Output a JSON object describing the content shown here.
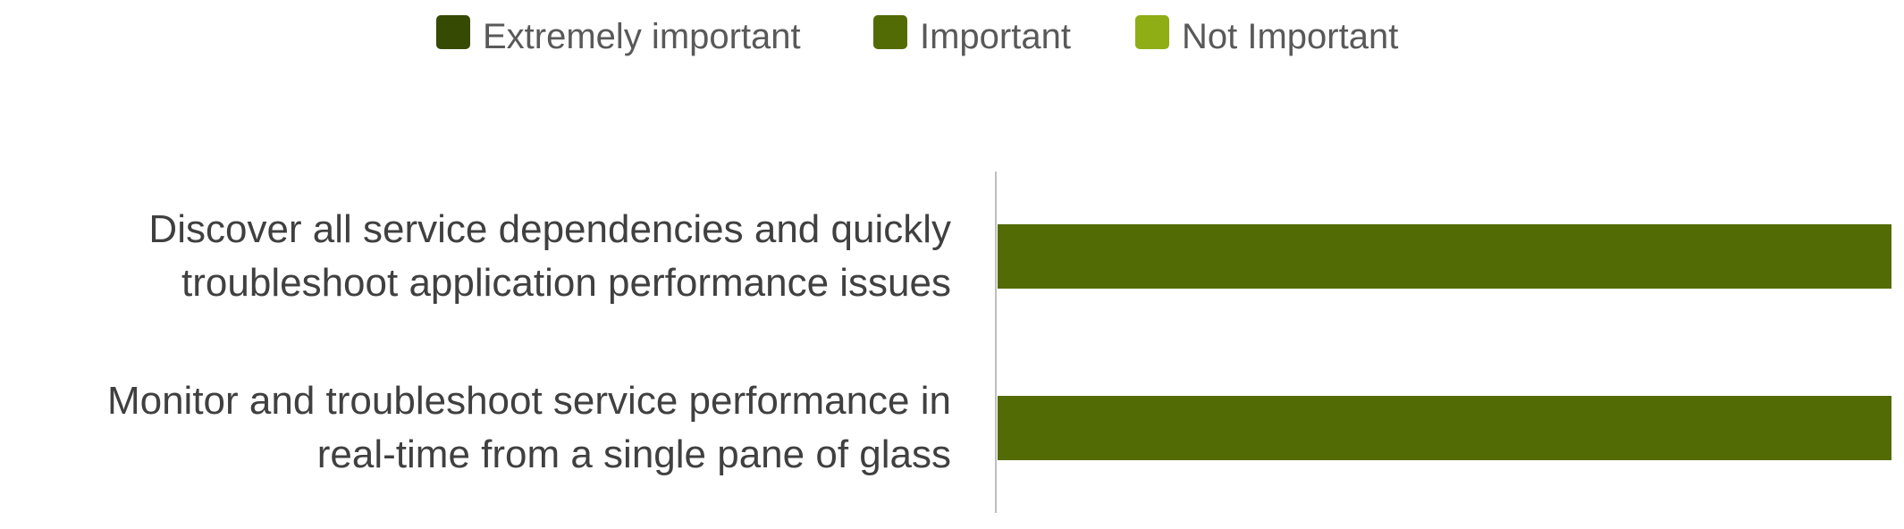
{
  "chart_data": {
    "type": "bar",
    "orientation": "horizontal",
    "stacked": true,
    "legend_position": "top",
    "grid": false,
    "categories": [
      [
        "Discover all service dependencies and quickly",
        "troubleshoot application performance issues"
      ],
      [
        "Monitor and troubleshoot service performance in",
        "real-time from a single pane of glass"
      ]
    ],
    "series": [
      {
        "name": "Extremely important",
        "color": "#364A04",
        "values": [
          0,
          0
        ]
      },
      {
        "name": "Important",
        "color": "#536B05",
        "values": [
          100,
          100
        ]
      },
      {
        "name": "Not Important",
        "color": "#8FAD15",
        "values": [
          0,
          0
        ]
      }
    ],
    "xlim": [
      0,
      100
    ]
  }
}
